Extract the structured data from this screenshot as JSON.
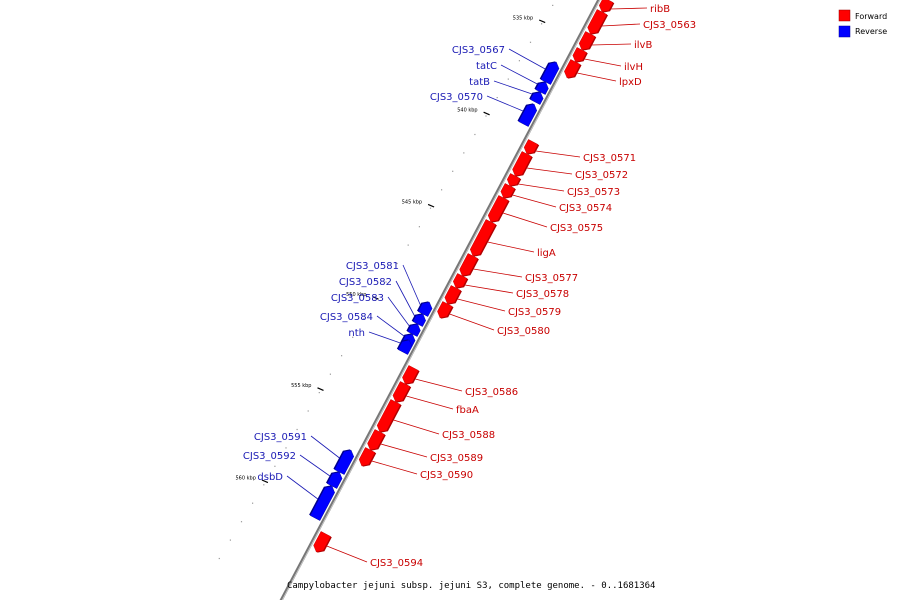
{
  "caption": "Campylobacter jejuni subsp. jejuni S3, complete genome. - 0..1681364",
  "legend": {
    "items": [
      {
        "label": "Forward",
        "color": "#ff0000"
      },
      {
        "label": "Reverse",
        "color": "#0000ff"
      }
    ]
  },
  "colors": {
    "forward": "#ff0000",
    "forward_dark": "#b00000",
    "reverse": "#0000ff",
    "reverse_dark": "#00008c",
    "forward_label": "#c80000",
    "reverse_label": "#1a1ab4",
    "backbone": "#777777"
  },
  "ticks": [
    {
      "label": "535 kbp"
    },
    {
      "label": "540 kbp"
    },
    {
      "label": "545 kbp"
    },
    {
      "label": "550 kbp"
    },
    {
      "label": "555 kbp"
    },
    {
      "label": "560 kbp"
    }
  ],
  "genes": [
    {
      "name": "ribB",
      "strand": "forward"
    },
    {
      "name": "CJS3_0563",
      "strand": "forward"
    },
    {
      "name": "ilvB",
      "strand": "forward"
    },
    {
      "name": "ilvH",
      "strand": "forward"
    },
    {
      "name": "lpxD",
      "strand": "forward"
    },
    {
      "name": "CJS3_0567",
      "strand": "reverse"
    },
    {
      "name": "tatC",
      "strand": "reverse"
    },
    {
      "name": "tatB",
      "strand": "reverse"
    },
    {
      "name": "CJS3_0570",
      "strand": "reverse"
    },
    {
      "name": "CJS3_0571",
      "strand": "forward"
    },
    {
      "name": "CJS3_0572",
      "strand": "forward"
    },
    {
      "name": "CJS3_0573",
      "strand": "forward"
    },
    {
      "name": "CJS3_0574",
      "strand": "forward"
    },
    {
      "name": "CJS3_0575",
      "strand": "forward"
    },
    {
      "name": "ligA",
      "strand": "forward"
    },
    {
      "name": "CJS3_0577",
      "strand": "forward"
    },
    {
      "name": "CJS3_0578",
      "strand": "forward"
    },
    {
      "name": "CJS3_0579",
      "strand": "forward"
    },
    {
      "name": "CJS3_0580",
      "strand": "forward"
    },
    {
      "name": "CJS3_0581",
      "strand": "reverse"
    },
    {
      "name": "CJS3_0582",
      "strand": "reverse"
    },
    {
      "name": "CJS3_0583",
      "strand": "reverse"
    },
    {
      "name": "CJS3_0584",
      "strand": "reverse"
    },
    {
      "name": "nth",
      "strand": "reverse"
    },
    {
      "name": "CJS3_0586",
      "strand": "forward"
    },
    {
      "name": "fbaA",
      "strand": "forward"
    },
    {
      "name": "CJS3_0588",
      "strand": "forward"
    },
    {
      "name": "CJS3_0589",
      "strand": "forward"
    },
    {
      "name": "CJS3_0590",
      "strand": "forward"
    },
    {
      "name": "CJS3_0591",
      "strand": "reverse"
    },
    {
      "name": "CJS3_0592",
      "strand": "reverse"
    },
    {
      "name": "dsbD",
      "strand": "reverse"
    },
    {
      "name": "CJS3_0594",
      "strand": "forward"
    }
  ]
}
